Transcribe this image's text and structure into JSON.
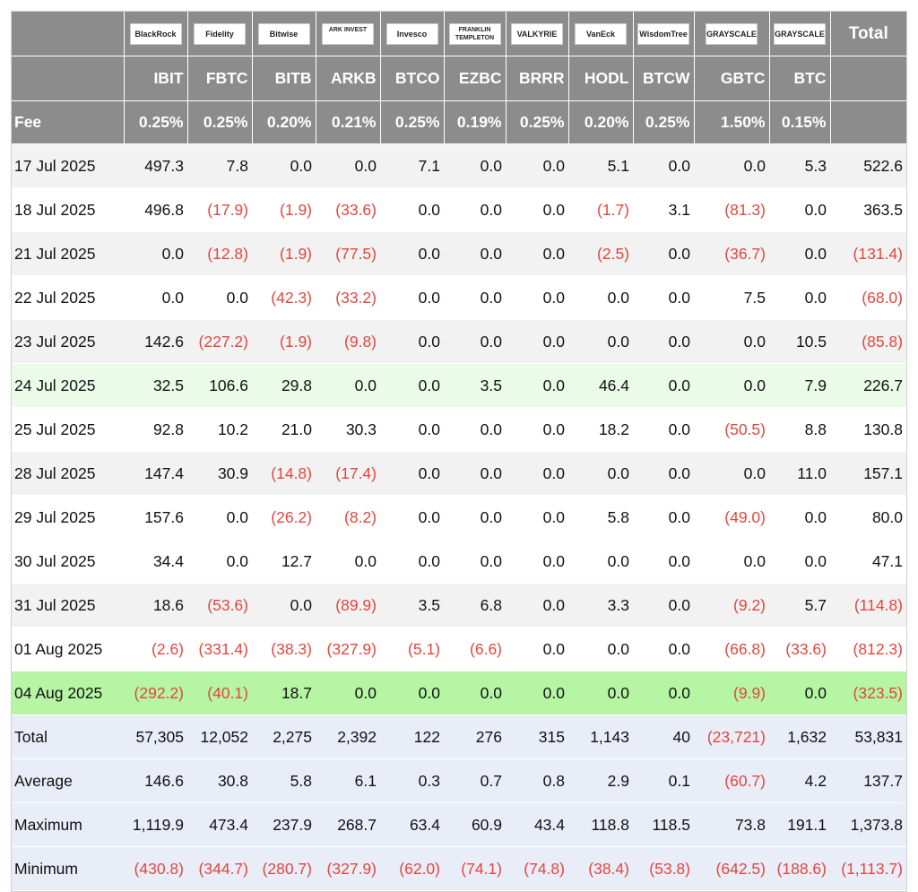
{
  "header": {
    "logos": [
      "BlackRock",
      "Fidelity",
      "Bitwise",
      "ARK INVEST",
      "Invesco",
      "FRANKLIN TEMPLETON",
      "VALKYRIE",
      "VanEck",
      "WisdomTree",
      "GRAYSCALE",
      "GRAYSCALE"
    ],
    "total_label": "Total",
    "tickers": [
      "IBIT",
      "FBTC",
      "BITB",
      "ARKB",
      "BTCO",
      "EZBC",
      "BRRR",
      "HODL",
      "BTCW",
      "GBTC",
      "BTC"
    ],
    "fee_label": "Fee",
    "fees": [
      "0.25%",
      "0.25%",
      "0.20%",
      "0.21%",
      "0.25%",
      "0.19%",
      "0.25%",
      "0.20%",
      "0.25%",
      "1.50%",
      "0.15%"
    ]
  },
  "rows": [
    {
      "label": "17 Jul 2025",
      "values": [
        "497.3",
        "7.8",
        "0.0",
        "0.0",
        "7.1",
        "0.0",
        "0.0",
        "5.1",
        "0.0",
        "0.0",
        "5.3",
        "522.6"
      ]
    },
    {
      "label": "18 Jul 2025",
      "values": [
        "496.8",
        "(17.9)",
        "(1.9)",
        "(33.6)",
        "0.0",
        "0.0",
        "0.0",
        "(1.7)",
        "3.1",
        "(81.3)",
        "0.0",
        "363.5"
      ]
    },
    {
      "label": "21 Jul 2025",
      "values": [
        "0.0",
        "(12.8)",
        "(1.9)",
        "(77.5)",
        "0.0",
        "0.0",
        "0.0",
        "(2.5)",
        "0.0",
        "(36.7)",
        "0.0",
        "(131.4)"
      ]
    },
    {
      "label": "22 Jul 2025",
      "values": [
        "0.0",
        "0.0",
        "(42.3)",
        "(33.2)",
        "0.0",
        "0.0",
        "0.0",
        "0.0",
        "0.0",
        "7.5",
        "0.0",
        "(68.0)"
      ]
    },
    {
      "label": "23 Jul 2025",
      "values": [
        "142.6",
        "(227.2)",
        "(1.9)",
        "(9.8)",
        "0.0",
        "0.0",
        "0.0",
        "0.0",
        "0.0",
        "0.0",
        "10.5",
        "(85.8)"
      ]
    },
    {
      "label": "24 Jul 2025",
      "values": [
        "32.5",
        "106.6",
        "29.8",
        "0.0",
        "0.0",
        "3.5",
        "0.0",
        "46.4",
        "0.0",
        "0.0",
        "7.9",
        "226.7"
      ]
    },
    {
      "label": "25 Jul 2025",
      "values": [
        "92.8",
        "10.2",
        "21.0",
        "30.3",
        "0.0",
        "0.0",
        "0.0",
        "18.2",
        "0.0",
        "(50.5)",
        "8.8",
        "130.8"
      ]
    },
    {
      "label": "28 Jul 2025",
      "values": [
        "147.4",
        "30.9",
        "(14.8)",
        "(17.4)",
        "0.0",
        "0.0",
        "0.0",
        "0.0",
        "0.0",
        "0.0",
        "11.0",
        "157.1"
      ]
    },
    {
      "label": "29 Jul 2025",
      "values": [
        "157.6",
        "0.0",
        "(26.2)",
        "(8.2)",
        "0.0",
        "0.0",
        "0.0",
        "5.8",
        "0.0",
        "(49.0)",
        "0.0",
        "80.0"
      ]
    },
    {
      "label": "30 Jul 2025",
      "values": [
        "34.4",
        "0.0",
        "12.7",
        "0.0",
        "0.0",
        "0.0",
        "0.0",
        "0.0",
        "0.0",
        "0.0",
        "0.0",
        "47.1"
      ]
    },
    {
      "label": "31 Jul 2025",
      "values": [
        "18.6",
        "(53.6)",
        "0.0",
        "(89.9)",
        "3.5",
        "6.8",
        "0.0",
        "3.3",
        "0.0",
        "(9.2)",
        "5.7",
        "(114.8)"
      ]
    },
    {
      "label": "01 Aug 2025",
      "values": [
        "(2.6)",
        "(331.4)",
        "(38.3)",
        "(327.9)",
        "(5.1)",
        "(6.6)",
        "0.0",
        "0.0",
        "0.0",
        "(66.8)",
        "(33.6)",
        "(812.3)"
      ]
    },
    {
      "label": "04 Aug 2025",
      "values": [
        "(292.2)",
        "(40.1)",
        "18.7",
        "0.0",
        "0.0",
        "0.0",
        "0.0",
        "0.0",
        "0.0",
        "(9.9)",
        "0.0",
        "(323.5)"
      ]
    }
  ],
  "summary": [
    {
      "label": "Total",
      "values": [
        "57,305",
        "12,052",
        "2,275",
        "2,392",
        "122",
        "276",
        "315",
        "1,143",
        "40",
        "(23,721)",
        "1,632",
        "53,831"
      ]
    },
    {
      "label": "Average",
      "values": [
        "146.6",
        "30.8",
        "5.8",
        "6.1",
        "0.3",
        "0.7",
        "0.8",
        "2.9",
        "0.1",
        "(60.7)",
        "4.2",
        "137.7"
      ]
    },
    {
      "label": "Maximum",
      "values": [
        "1,119.9",
        "473.4",
        "237.9",
        "268.7",
        "63.4",
        "60.9",
        "43.4",
        "118.8",
        "118.5",
        "73.8",
        "191.1",
        "1,373.8"
      ]
    },
    {
      "label": "Minimum",
      "values": [
        "(430.8)",
        "(344.7)",
        "(280.7)",
        "(327.9)",
        "(62.0)",
        "(74.1)",
        "(74.8)",
        "(38.4)",
        "(53.8)",
        "(642.5)",
        "(188.6)",
        "(1,113.7)"
      ]
    }
  ]
}
